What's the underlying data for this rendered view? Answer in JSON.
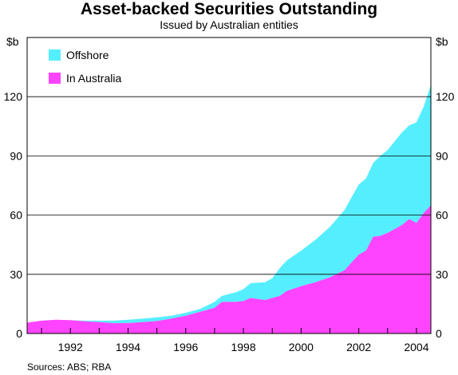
{
  "chart_data": {
    "type": "area",
    "stacked": true,
    "title": "Asset-backed Securities Outstanding",
    "subtitle": "Issued by Australian entities",
    "y_unit_left": "$b",
    "y_unit_right": "$b",
    "ylim": [
      0,
      150
    ],
    "yticks": [
      0,
      30,
      60,
      90,
      120
    ],
    "xlim": [
      1990.5,
      2004.5
    ],
    "xticks": [
      "1992",
      "1994",
      "1996",
      "1998",
      "2000",
      "2002",
      "2004"
    ],
    "grid": true,
    "legend_position": "top-left",
    "series": [
      {
        "name": "In Australia",
        "color": "#ff44ff",
        "points": [
          [
            1990.5,
            5.5
          ],
          [
            1991.0,
            6.5
          ],
          [
            1991.5,
            7
          ],
          [
            1992.0,
            6.8
          ],
          [
            1992.5,
            6.2
          ],
          [
            1993.0,
            5.8
          ],
          [
            1993.5,
            5.2
          ],
          [
            1994.0,
            5.3
          ],
          [
            1994.5,
            5.8
          ],
          [
            1995.0,
            6.3
          ],
          [
            1995.5,
            7.5
          ],
          [
            1996.0,
            9
          ],
          [
            1996.5,
            11
          ],
          [
            1997.0,
            13
          ],
          [
            1997.25,
            16
          ],
          [
            1997.75,
            16
          ],
          [
            1998.0,
            16.5
          ],
          [
            1998.25,
            18
          ],
          [
            1998.75,
            17
          ],
          [
            1999.0,
            18
          ],
          [
            1999.25,
            19
          ],
          [
            1999.5,
            21.5
          ],
          [
            2000.0,
            24
          ],
          [
            2000.5,
            26
          ],
          [
            2001.0,
            28.5
          ],
          [
            2001.5,
            32
          ],
          [
            2002.0,
            40
          ],
          [
            2002.25,
            42
          ],
          [
            2002.5,
            49
          ],
          [
            2002.75,
            49.5
          ],
          [
            2003.0,
            51
          ],
          [
            2003.5,
            55
          ],
          [
            2003.75,
            58
          ],
          [
            2004.0,
            56
          ],
          [
            2004.25,
            61
          ],
          [
            2004.5,
            65
          ]
        ]
      },
      {
        "name": "Offshore",
        "color": "#55eeff",
        "points": [
          [
            1990.5,
            0
          ],
          [
            1991.0,
            0
          ],
          [
            1991.5,
            0
          ],
          [
            1992.0,
            0
          ],
          [
            1992.5,
            0.3
          ],
          [
            1993.0,
            0.7
          ],
          [
            1993.5,
            1.3
          ],
          [
            1994.0,
            1.7
          ],
          [
            1994.5,
            1.7
          ],
          [
            1995.0,
            1.9
          ],
          [
            1995.5,
            1.5
          ],
          [
            1996.0,
            1.5
          ],
          [
            1996.5,
            1.5
          ],
          [
            1997.0,
            3
          ],
          [
            1997.25,
            3
          ],
          [
            1997.75,
            5
          ],
          [
            1998.0,
            6
          ],
          [
            1998.25,
            7.5
          ],
          [
            1998.75,
            9
          ],
          [
            1999.0,
            10
          ],
          [
            1999.25,
            14
          ],
          [
            1999.5,
            15.5
          ],
          [
            2000.0,
            18
          ],
          [
            2000.5,
            21.5
          ],
          [
            2001.0,
            25.5
          ],
          [
            2001.5,
            30.5
          ],
          [
            2002.0,
            35.5
          ],
          [
            2002.25,
            36.5
          ],
          [
            2002.5,
            37.5
          ],
          [
            2002.75,
            40.5
          ],
          [
            2003.0,
            42
          ],
          [
            2003.5,
            47
          ],
          [
            2003.75,
            47.5
          ],
          [
            2004.0,
            51
          ],
          [
            2004.25,
            54
          ],
          [
            2004.5,
            61
          ]
        ]
      }
    ]
  },
  "source_note": "Sources: ABS; RBA"
}
